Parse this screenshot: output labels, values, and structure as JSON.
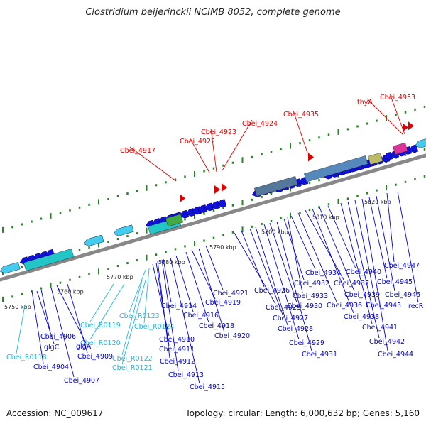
{
  "header": {
    "title": "Clostridium beijerinckii NCIMB 8052, complete genome"
  },
  "footer": {
    "accession": "Accession: NC_009617",
    "summary": "Topology: circular; Length: 6,000,632 bp; Genes: 5,160"
  },
  "colors": {
    "red": "#dd0000",
    "blue": "#0000cc",
    "cyan": "#22b8dd",
    "backbone": "#888888",
    "ticks": "#228822",
    "arrow_blue": "#1111dd",
    "arrow_cyan": "#44ccee"
  },
  "kbp_labels": [
    "5750 kbp",
    "5760 kbp",
    "5770 kbp",
    "5780 kbp",
    "5790 kbp",
    "5800 kbp",
    "5810 kbp",
    "5820 kbp"
  ],
  "red_labels": [
    "Cbei_4917",
    "Cbei_4922",
    "Cbei_4923",
    "Cbei_4924",
    "Cbei_4935",
    "thyA",
    "Cbei_4953"
  ],
  "cyan_labels": [
    "Cbei_R0118",
    "Cbei_R0119",
    "Cbei_R0120",
    "Cbei_R0121",
    "Cbei_R0122",
    "Cbei_R0123",
    "Cbei_R0124"
  ],
  "blue_labels": [
    "Cbei_4904",
    "glgC",
    "Cbei_4906",
    "Cbei_4907",
    "glgA",
    "Cbei_4909",
    "Cbei_4910",
    "Cbei_4911",
    "Cbei_4912",
    "Cbei_4913",
    "Cbei_4914",
    "Cbei_4915",
    "Cbei_4916",
    "Cbei_4918",
    "Cbei_4919",
    "Cbei_4920",
    "Cbei_4921",
    "Cbei_4925",
    "Cbei_4926",
    "Cbei_4927",
    "Cbei_4928",
    "Cbei_4929",
    "Cbei_4930",
    "Cbei_4931",
    "Cbei_4932",
    "Cbei_4933",
    "Cbei_4934",
    "Cbei_4936",
    "Cbei_4937",
    "Cbei_4938",
    "Cbei_4939",
    "Cbei_4940",
    "Cbei_4941",
    "Cbei_4942",
    "Cbei_4943",
    "Cbei_4944",
    "Cbei_4945",
    "Cbei_4946",
    "Cbei_4947",
    "recR"
  ]
}
